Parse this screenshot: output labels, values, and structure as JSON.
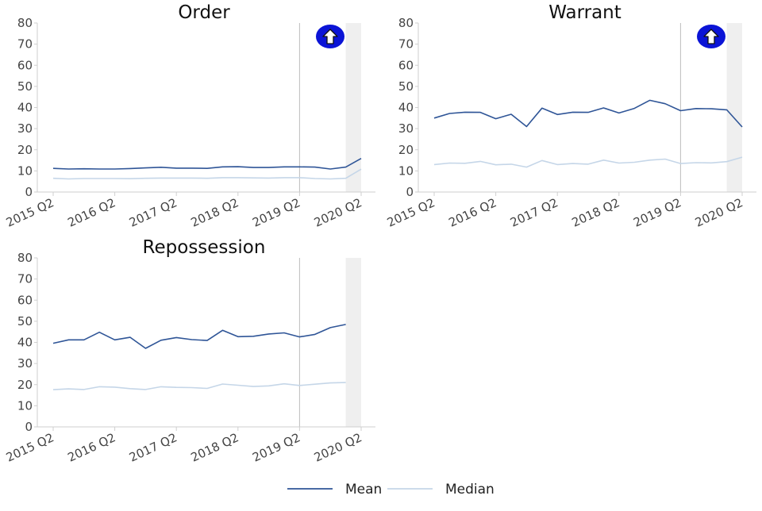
{
  "legend": {
    "position": "bottom-center",
    "items": [
      {
        "label": "Mean",
        "color": "#2f5597"
      },
      {
        "label": "Median",
        "color": "#c5d6e8"
      }
    ]
  },
  "chart_data": [
    {
      "type": "line",
      "title": "Order",
      "xlabel": "",
      "ylabel": "",
      "ylim": [
        0,
        80
      ],
      "yticks": [
        "0",
        "10",
        "20",
        "30",
        "40",
        "50",
        "60",
        "70",
        "80"
      ],
      "xticks": [
        "2015 Q2",
        "2016 Q2",
        "2017 Q2",
        "2018 Q2",
        "2019 Q2",
        "2020 Q2"
      ],
      "x": [
        "2015 Q2",
        "2015 Q3",
        "2015 Q4",
        "2016 Q1",
        "2016 Q2",
        "2016 Q3",
        "2016 Q4",
        "2017 Q1",
        "2017 Q2",
        "2017 Q3",
        "2017 Q4",
        "2018 Q1",
        "2018 Q2",
        "2018 Q3",
        "2018 Q4",
        "2019 Q1",
        "2019 Q2",
        "2019 Q3",
        "2019 Q4",
        "2020 Q1",
        "2020 Q2"
      ],
      "series": [
        {
          "name": "Mean",
          "color": "#2f5597",
          "values": [
            11.2,
            10.9,
            11.0,
            10.9,
            10.9,
            11.1,
            11.4,
            11.7,
            11.3,
            11.3,
            11.2,
            11.9,
            12.0,
            11.6,
            11.6,
            11.9,
            11.9,
            11.8,
            10.9,
            11.8,
            15.9
          ]
        },
        {
          "name": "Median",
          "color": "#c5d6e8",
          "values": [
            6.5,
            6.2,
            6.4,
            6.4,
            6.4,
            6.3,
            6.5,
            6.6,
            6.6,
            6.6,
            6.5,
            6.8,
            6.8,
            6.7,
            6.6,
            6.8,
            6.8,
            6.4,
            6.2,
            6.5,
            10.8
          ]
        }
      ],
      "reference_line_x": "2019 Q2",
      "shaded_band": [
        "2020 Q1",
        "2020 Q2"
      ],
      "badge": {
        "icon": "arrow-up-icon",
        "fill": "#0b14d6"
      }
    },
    {
      "type": "line",
      "title": "Warrant",
      "xlabel": "",
      "ylabel": "",
      "ylim": [
        0,
        80
      ],
      "yticks": [
        "0",
        "10",
        "20",
        "30",
        "40",
        "50",
        "60",
        "70",
        "80"
      ],
      "xticks": [
        "2015 Q2",
        "2016 Q2",
        "2017 Q2",
        "2018 Q2",
        "2019 Q2",
        "2020 Q2"
      ],
      "x": [
        "2015 Q2",
        "2015 Q3",
        "2015 Q4",
        "2016 Q1",
        "2016 Q2",
        "2016 Q3",
        "2016 Q4",
        "2017 Q1",
        "2017 Q2",
        "2017 Q3",
        "2017 Q4",
        "2018 Q1",
        "2018 Q2",
        "2018 Q3",
        "2018 Q4",
        "2019 Q1",
        "2019 Q2",
        "2019 Q3",
        "2019 Q4",
        "2020 Q1",
        "2020 Q2"
      ],
      "series": [
        {
          "name": "Mean",
          "color": "#2f5597",
          "values": [
            35.0,
            37.2,
            37.8,
            37.7,
            34.7,
            36.8,
            31.0,
            39.7,
            36.7,
            37.8,
            37.7,
            39.8,
            37.4,
            39.6,
            43.4,
            41.8,
            38.5,
            39.5,
            39.4,
            38.9,
            30.8
          ]
        },
        {
          "name": "Median",
          "color": "#c5d6e8",
          "values": [
            13.0,
            13.7,
            13.6,
            14.5,
            12.9,
            13.2,
            11.8,
            14.9,
            13.0,
            13.5,
            13.2,
            15.1,
            13.7,
            14.1,
            15.1,
            15.6,
            13.5,
            13.9,
            13.8,
            14.4,
            16.5
          ]
        }
      ],
      "reference_line_x": "2019 Q2",
      "shaded_band": [
        "2020 Q1",
        "2020 Q2"
      ],
      "badge": {
        "icon": "arrow-up-icon",
        "fill": "#0b14d6"
      }
    },
    {
      "type": "line",
      "title": "Repossession",
      "xlabel": "",
      "ylabel": "",
      "ylim": [
        0,
        80
      ],
      "yticks": [
        "0",
        "10",
        "20",
        "30",
        "40",
        "50",
        "60",
        "70",
        "80"
      ],
      "xticks": [
        "2015 Q2",
        "2016 Q2",
        "2017 Q2",
        "2018 Q2",
        "2019 Q2",
        "2020 Q2"
      ],
      "x": [
        "2015 Q2",
        "2015 Q3",
        "2015 Q4",
        "2016 Q1",
        "2016 Q2",
        "2016 Q3",
        "2016 Q4",
        "2017 Q1",
        "2017 Q2",
        "2017 Q3",
        "2017 Q4",
        "2018 Q1",
        "2018 Q2",
        "2018 Q3",
        "2018 Q4",
        "2019 Q1",
        "2019 Q2",
        "2019 Q3",
        "2019 Q4",
        "2020 Q1"
      ],
      "series": [
        {
          "name": "Mean",
          "color": "#2f5597",
          "values": [
            39.6,
            41.2,
            41.2,
            44.8,
            41.2,
            42.4,
            37.2,
            41.0,
            42.3,
            41.3,
            40.9,
            45.7,
            42.7,
            42.9,
            44.0,
            44.5,
            42.6,
            43.8,
            47.0,
            48.5
          ]
        },
        {
          "name": "Median",
          "color": "#c5d6e8",
          "values": [
            17.6,
            18.0,
            17.7,
            19.0,
            18.8,
            18.1,
            17.7,
            19.0,
            18.7,
            18.6,
            18.2,
            20.3,
            19.7,
            19.1,
            19.4,
            20.4,
            19.6,
            20.2,
            20.8,
            21.0
          ]
        }
      ],
      "reference_line_x": "2019 Q2",
      "shaded_band": [
        "2020 Q1",
        "2020 Q2"
      ]
    }
  ]
}
